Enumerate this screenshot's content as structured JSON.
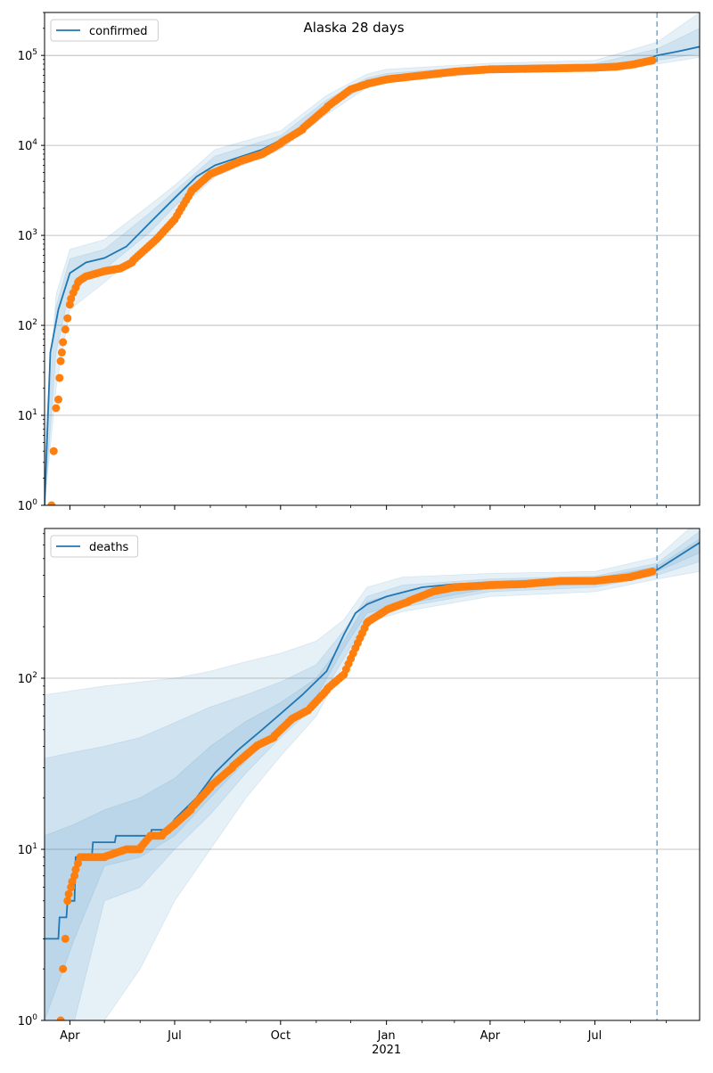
{
  "title": "Alaska 28 days",
  "colors": {
    "line": "#1f77b4",
    "points": "#ff7f0e",
    "band": "#1f77b4",
    "forecast_line": "#1f77b4",
    "grid": "#b0b0b0"
  },
  "xaxis": {
    "start": "2020-03-10",
    "end": "2021-09-30",
    "ticks": [
      {
        "date": "2020-04-01",
        "label": "Apr"
      },
      {
        "date": "2020-07-01",
        "label": "Jul"
      },
      {
        "date": "2020-10-01",
        "label": "Oct"
      },
      {
        "date": "2021-01-01",
        "label": "Jan"
      },
      {
        "date": "2021-04-01",
        "label": "Apr"
      },
      {
        "date": "2021-07-01",
        "label": "Jul"
      }
    ],
    "year_label": "2021",
    "minor_ticks": [
      "2020-05-01",
      "2020-06-01",
      "2020-08-01",
      "2020-09-01",
      "2020-11-01",
      "2020-12-01",
      "2021-02-01",
      "2021-03-01",
      "2021-05-01",
      "2021-06-01",
      "2021-08-01",
      "2021-09-01"
    ]
  },
  "chart_data": [
    {
      "type": "line",
      "title": "Alaska 28 days",
      "legend": "top-left",
      "y_scale": "log",
      "ylim": [
        1,
        300000
      ],
      "y_ticks": [
        {
          "value": 1,
          "base": "10",
          "exp": "0"
        },
        {
          "value": 10,
          "base": "10",
          "exp": "1"
        },
        {
          "value": 100,
          "base": "10",
          "exp": "2"
        },
        {
          "value": 1000,
          "base": "10",
          "exp": "3"
        },
        {
          "value": 10000,
          "base": "10",
          "exp": "4"
        },
        {
          "value": 100000,
          "base": "10",
          "exp": "5"
        }
      ],
      "grid": "y-major",
      "forecast_start": "2021-08-24",
      "series": [
        {
          "name": "confirmed",
          "kind": "model-line",
          "x": [
            "2020-03-10",
            "2020-03-15",
            "2020-03-22",
            "2020-04-01",
            "2020-04-15",
            "2020-05-01",
            "2020-05-20",
            "2020-06-10",
            "2020-07-01",
            "2020-07-20",
            "2020-08-05",
            "2020-08-25",
            "2020-09-15",
            "2020-10-01",
            "2020-10-20",
            "2020-11-10",
            "2020-12-01",
            "2020-12-15",
            "2021-01-01",
            "2021-02-01",
            "2021-03-01",
            "2021-04-01",
            "2021-05-01",
            "2021-06-01",
            "2021-07-01",
            "2021-07-25",
            "2021-08-10",
            "2021-08-24",
            "2021-09-10",
            "2021-09-30"
          ],
          "values": [
            1,
            50,
            150,
            380,
            500,
            560,
            750,
            1400,
            2600,
            4500,
            6000,
            7300,
            9000,
            11500,
            16500,
            28000,
            42000,
            51000,
            57000,
            64000,
            68000,
            71000,
            72500,
            73000,
            74000,
            76000,
            85000,
            100000,
            110000,
            125000
          ]
        },
        {
          "name": "confirmed-observed",
          "kind": "points",
          "x": [
            "2020-03-16",
            "2020-03-18",
            "2020-03-20",
            "2020-03-22",
            "2020-03-23",
            "2020-03-24",
            "2020-03-25",
            "2020-03-26",
            "2020-03-28",
            "2020-03-30",
            "2020-04-01",
            "2020-04-04",
            "2020-04-08",
            "2020-04-15",
            "2020-05-01",
            "2020-05-15",
            "2020-05-25",
            "2020-06-01",
            "2020-06-15",
            "2020-07-01",
            "2020-07-15",
            "2020-08-01",
            "2020-08-25",
            "2020-09-15",
            "2020-10-01",
            "2020-10-20",
            "2020-11-10",
            "2020-12-01",
            "2020-12-15",
            "2021-01-01",
            "2021-02-01",
            "2021-03-01",
            "2021-04-01",
            "2021-05-01",
            "2021-06-01",
            "2021-07-01",
            "2021-07-20",
            "2021-08-05",
            "2021-08-20"
          ],
          "values": [
            1,
            4,
            12,
            15,
            26,
            40,
            50,
            65,
            90,
            120,
            170,
            230,
            300,
            350,
            400,
            430,
            500,
            620,
            900,
            1500,
            3000,
            4800,
            6500,
            8000,
            10500,
            15000,
            26000,
            42000,
            48000,
            54000,
            60000,
            66000,
            70000,
            71000,
            72000,
            73000,
            75000,
            80000,
            88000
          ]
        },
        {
          "name": "band-outer",
          "kind": "band",
          "x": [
            "2020-03-10",
            "2020-03-20",
            "2020-04-01",
            "2020-05-01",
            "2020-06-10",
            "2020-07-01",
            "2020-08-05",
            "2020-10-01",
            "2020-11-10",
            "2020-12-15",
            "2021-01-01",
            "2021-04-01",
            "2021-07-01",
            "2021-08-24",
            "2021-09-30"
          ],
          "low": [
            1,
            20,
            150,
            300,
            800,
            1700,
            4500,
            9000,
            22000,
            44000,
            50000,
            64000,
            67000,
            80000,
            95000
          ],
          "high": [
            5,
            220,
            700,
            900,
            2200,
            3600,
            9000,
            14500,
            36000,
            62000,
            70000,
            82000,
            88000,
            140000,
            300000
          ]
        },
        {
          "name": "band-inner",
          "kind": "band",
          "x": [
            "2020-03-10",
            "2020-03-20",
            "2020-04-01",
            "2020-05-01",
            "2020-06-10",
            "2020-07-01",
            "2020-08-05",
            "2020-10-01",
            "2020-11-10",
            "2020-12-15",
            "2021-01-01",
            "2021-04-01",
            "2021-07-01",
            "2021-08-24",
            "2021-09-30"
          ],
          "low": [
            1,
            50,
            250,
            420,
            1100,
            2100,
            5200,
            10400,
            25000,
            47000,
            53000,
            67000,
            70000,
            88000,
            105000
          ],
          "high": [
            3,
            160,
            550,
            700,
            1800,
            3100,
            7600,
            12800,
            32000,
            56000,
            63000,
            77000,
            81000,
            118000,
            200000
          ]
        }
      ]
    },
    {
      "type": "line",
      "legend": "top-left",
      "y_scale": "log",
      "ylim": [
        1,
        750
      ],
      "y_ticks": [
        {
          "value": 1,
          "base": "10",
          "exp": "0"
        },
        {
          "value": 10,
          "base": "10",
          "exp": "1"
        },
        {
          "value": 100,
          "base": "10",
          "exp": "2"
        }
      ],
      "grid": "y-major",
      "forecast_start": "2021-08-24",
      "series": [
        {
          "name": "deaths",
          "kind": "model-line",
          "x": [
            "2020-03-10",
            "2020-03-22",
            "2020-03-23",
            "2020-03-29",
            "2020-03-30",
            "2020-04-05",
            "2020-04-06",
            "2020-04-20",
            "2020-04-21",
            "2020-05-10",
            "2020-05-11",
            "2020-06-10",
            "2020-06-11",
            "2020-06-25",
            "2020-07-01",
            "2020-07-20",
            "2020-08-05",
            "2020-08-25",
            "2020-09-15",
            "2020-10-01",
            "2020-10-20",
            "2020-11-10",
            "2020-11-25",
            "2020-12-05",
            "2020-12-15",
            "2021-01-01",
            "2021-02-01",
            "2021-03-01",
            "2021-04-01",
            "2021-05-01",
            "2021-06-01",
            "2021-07-01",
            "2021-08-01",
            "2021-08-24",
            "2021-09-30"
          ],
          "values": [
            3,
            3,
            4,
            4,
            5,
            5,
            9,
            9,
            11,
            11,
            12,
            12,
            13,
            13,
            15,
            20,
            28,
            38,
            50,
            62,
            80,
            110,
            180,
            240,
            270,
            300,
            340,
            355,
            360,
            365,
            370,
            380,
            400,
            430,
            620
          ]
        },
        {
          "name": "deaths-observed",
          "kind": "points",
          "x": [
            "2020-03-24",
            "2020-03-26",
            "2020-03-28",
            "2020-03-30",
            "2020-04-02",
            "2020-04-05",
            "2020-04-10",
            "2020-04-20",
            "2020-05-01",
            "2020-05-20",
            "2020-06-01",
            "2020-06-10",
            "2020-06-20",
            "2020-07-01",
            "2020-07-15",
            "2020-08-01",
            "2020-08-20",
            "2020-09-10",
            "2020-09-25",
            "2020-10-10",
            "2020-10-25",
            "2020-11-10",
            "2020-11-25",
            "2020-12-05",
            "2020-12-15",
            "2021-01-01",
            "2021-01-20",
            "2021-02-10",
            "2021-03-01",
            "2021-04-01",
            "2021-05-01",
            "2021-06-01",
            "2021-07-01",
            "2021-08-01",
            "2021-08-20"
          ],
          "values": [
            1,
            2,
            3,
            5,
            6,
            7,
            9,
            9,
            9,
            10,
            10,
            12,
            12,
            14,
            17,
            23,
            30,
            40,
            45,
            57,
            65,
            85,
            105,
            150,
            210,
            250,
            280,
            320,
            340,
            350,
            355,
            370,
            370,
            390,
            420
          ]
        },
        {
          "name": "band-outer",
          "kind": "band",
          "x": [
            "2020-03-10",
            "2020-04-05",
            "2020-05-01",
            "2020-06-01",
            "2020-07-01",
            "2020-08-01",
            "2020-09-01",
            "2020-10-01",
            "2020-11-01",
            "2020-11-25",
            "2020-12-15",
            "2021-01-15",
            "2021-04-01",
            "2021-07-01",
            "2021-08-24",
            "2021-09-30"
          ],
          "low": [
            1,
            1,
            1,
            2,
            5,
            10,
            20,
            35,
            60,
            120,
            210,
            245,
            300,
            320,
            380,
            420
          ],
          "high": [
            80,
            85,
            90,
            95,
            100,
            110,
            125,
            140,
            165,
            220,
            340,
            390,
            410,
            420,
            510,
            850
          ]
        },
        {
          "name": "band-middle",
          "kind": "band",
          "x": [
            "2020-03-10",
            "2020-04-05",
            "2020-05-01",
            "2020-06-01",
            "2020-07-01",
            "2020-08-01",
            "2020-09-01",
            "2020-10-01",
            "2020-11-01",
            "2020-11-25",
            "2020-12-15",
            "2021-01-15",
            "2021-04-01",
            "2021-07-01",
            "2021-08-24",
            "2021-09-30"
          ],
          "low": [
            1,
            1,
            5,
            6,
            10,
            16,
            28,
            45,
            70,
            130,
            225,
            260,
            320,
            340,
            400,
            480
          ],
          "high": [
            34,
            37,
            40,
            45,
            55,
            68,
            80,
            95,
            120,
            190,
            300,
            350,
            380,
            395,
            470,
            720
          ]
        },
        {
          "name": "band-inner",
          "kind": "band",
          "x": [
            "2020-03-10",
            "2020-04-05",
            "2020-05-01",
            "2020-06-01",
            "2020-07-01",
            "2020-08-01",
            "2020-09-01",
            "2020-10-01",
            "2020-11-01",
            "2020-11-25",
            "2020-12-15",
            "2021-01-15",
            "2021-04-01",
            "2021-07-01",
            "2021-08-24",
            "2021-09-30"
          ],
          "low": [
            1,
            3,
            8,
            9,
            12,
            20,
            33,
            52,
            78,
            150,
            240,
            270,
            335,
            355,
            420,
            540
          ],
          "high": [
            12,
            14,
            17,
            20,
            26,
            40,
            56,
            72,
            100,
            165,
            280,
            320,
            370,
            385,
            450,
            650
          ]
        }
      ]
    }
  ]
}
